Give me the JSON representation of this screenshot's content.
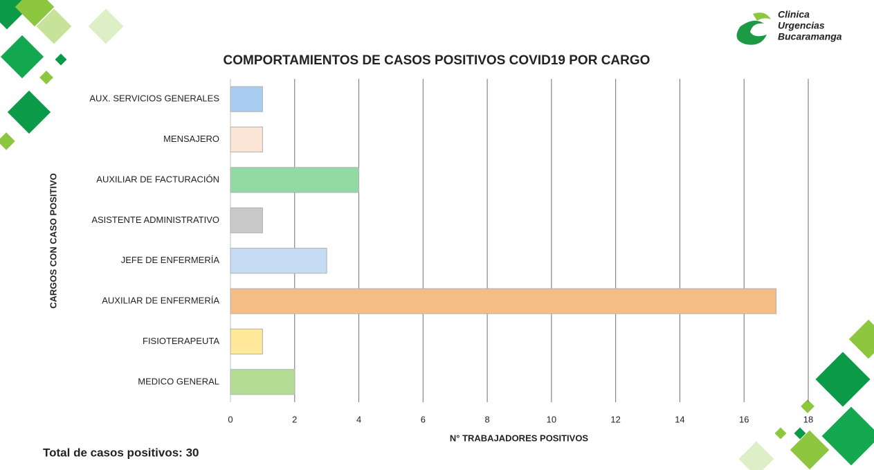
{
  "chart_data": {
    "type": "bar",
    "orientation": "horizontal",
    "title": "COMPORTAMIENTOS DE CASOS POSITIVOS COVID19 POR CARGO",
    "xlabel": "N° TRABAJADORES POSITIVOS",
    "ylabel": "CARGOS CON CASO POSITIVO",
    "categories": [
      "AUX. SERVICIOS GENERALES",
      "MENSAJERO",
      "AUXILIAR DE FACTURACIÓN",
      "ASISTENTE ADMINISTRATIVO",
      "JEFE DE ENFERMERÍA",
      "AUXILIAR DE ENFERMERÍA",
      "FISIOTERAPEUTA",
      "MEDICO GENERAL"
    ],
    "values": [
      1,
      1,
      4,
      1,
      3,
      17,
      1,
      2
    ],
    "colors": [
      "#a9cdf0",
      "#fbe5d6",
      "#93d9a4",
      "#c9c9c9",
      "#c5dcf2",
      "#f4bd86",
      "#ffe89a",
      "#b5dc94"
    ],
    "xlim": [
      0,
      18
    ],
    "xticks": [
      0,
      2,
      4,
      6,
      8,
      10,
      12,
      14,
      16,
      18
    ],
    "grid": true
  },
  "footer": "Total de casos positivos: 30",
  "logo": [
    "Clinica",
    "Urgencias",
    "Bucaramanga"
  ]
}
